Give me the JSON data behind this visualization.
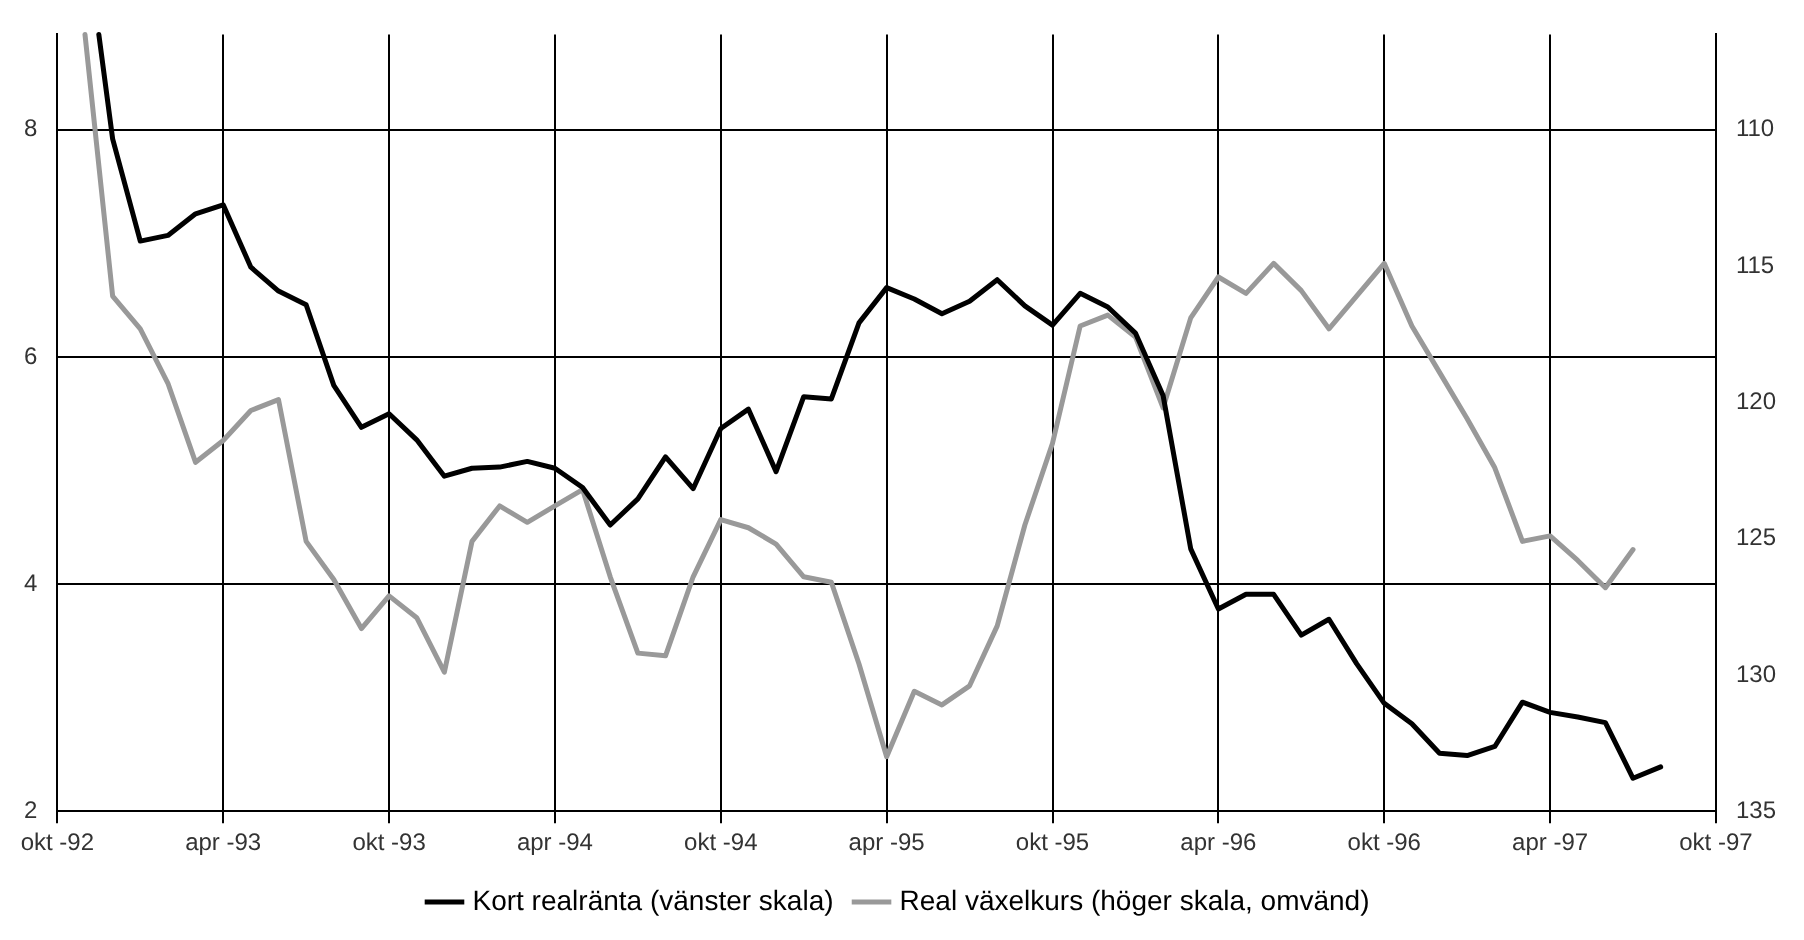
{
  "chart_data": {
    "type": "line",
    "xlim": [
      "1992-10",
      "1997-10"
    ],
    "xticks": [
      {
        "value": "1992-10",
        "label": "okt -92"
      },
      {
        "value": "1993-04",
        "label": "apr -93"
      },
      {
        "value": "1993-10",
        "label": "okt -93"
      },
      {
        "value": "1994-04",
        "label": "apr -94"
      },
      {
        "value": "1994-10",
        "label": "okt -94"
      },
      {
        "value": "1995-04",
        "label": "apr -95"
      },
      {
        "value": "1995-10",
        "label": "okt -95"
      },
      {
        "value": "1996-04",
        "label": "apr -96"
      },
      {
        "value": "1996-10",
        "label": "okt -96"
      },
      {
        "value": "1997-04",
        "label": "apr -97"
      },
      {
        "value": "1997-10",
        "label": "okt -97"
      }
    ],
    "ylim": [
      2,
      8.84
    ],
    "yticks": [
      2,
      4,
      6,
      8
    ],
    "y2lim": [
      135,
      106.5
    ],
    "y2ticks": [
      110,
      115,
      120,
      125,
      130,
      135
    ],
    "grid": true,
    "legend": "bottom",
    "marker": "none",
    "line_style": "solid",
    "series": [
      {
        "name": "Kort realränta (vänster skala)",
        "color": "#000000",
        "x": [
          "1992-11-16",
          "1992-12",
          "1993-01",
          "1993-02",
          "1993-03",
          "1993-04",
          "1993-05",
          "1993-06",
          "1993-07",
          "1993-08",
          "1993-09",
          "1993-10",
          "1993-11",
          "1993-12",
          "1994-01",
          "1994-02",
          "1994-03",
          "1994-04",
          "1994-05",
          "1994-06",
          "1994-07",
          "1994-08",
          "1994-09",
          "1994-10",
          "1994-11",
          "1994-12",
          "1995-01",
          "1995-02",
          "1995-03",
          "1995-04",
          "1995-05",
          "1995-06",
          "1995-07",
          "1995-08",
          "1995-09",
          "1995-10",
          "1995-11",
          "1995-12",
          "1996-01",
          "1996-02",
          "1996-03",
          "1996-04",
          "1996-05",
          "1996-06",
          "1996-07",
          "1996-08",
          "1996-09",
          "1996-10",
          "1996-11",
          "1996-12",
          "1997-01",
          "1997-02",
          "1997-03",
          "1997-04",
          "1997-05",
          "1997-06",
          "1997-07",
          "1997-08"
        ],
        "values": [
          8.84,
          7.92,
          7.02,
          7.07,
          7.26,
          7.34,
          6.79,
          6.58,
          6.46,
          5.75,
          5.38,
          5.5,
          5.27,
          4.95,
          5.02,
          5.03,
          5.08,
          5.02,
          4.85,
          4.52,
          4.75,
          5.12,
          4.84,
          5.37,
          5.54,
          4.99,
          5.65,
          5.63,
          6.3,
          6.61,
          6.51,
          6.38,
          6.49,
          6.68,
          6.45,
          6.28,
          6.56,
          6.44,
          6.21,
          5.66,
          4.31,
          3.78,
          3.91,
          3.91,
          3.55,
          3.69,
          3.3,
          2.95,
          2.77,
          2.51,
          2.49,
          2.57,
          2.96,
          2.87,
          2.83,
          2.78,
          2.29,
          2.39
        ]
      },
      {
        "name": "Real växelkurs (höger skala, omvänd)",
        "color": "#999999",
        "axis": "y2",
        "x": [
          "1992-11",
          "1992-12",
          "1993-01",
          "1993-02",
          "1993-03",
          "1993-04",
          "1993-05",
          "1993-06",
          "1993-07",
          "1993-08",
          "1993-09",
          "1993-10",
          "1993-11",
          "1993-12",
          "1994-01",
          "1994-02",
          "1994-03",
          "1994-04",
          "1994-05",
          "1994-06",
          "1994-07",
          "1994-08",
          "1994-09",
          "1994-10",
          "1994-11",
          "1994-12",
          "1995-01",
          "1995-02",
          "1995-03",
          "1995-04",
          "1995-05",
          "1995-06",
          "1995-07",
          "1995-08",
          "1995-09",
          "1995-10",
          "1995-11",
          "1995-12",
          "1996-01",
          "1996-02",
          "1996-03",
          "1996-04",
          "1996-05",
          "1996-06",
          "1996-07",
          "1996-08",
          "1996-09",
          "1996-10",
          "1996-11",
          "1996-12",
          "1997-01",
          "1997-02",
          "1997-03",
          "1997-04",
          "1997-05",
          "1997-06",
          "1997-07"
        ],
        "values": [
          106.5,
          116.1,
          117.3,
          119.3,
          122.2,
          121.4,
          120.3,
          119.9,
          125.1,
          126.5,
          128.3,
          127.1,
          127.9,
          129.9,
          125.1,
          123.8,
          124.4,
          123.8,
          123.2,
          126.4,
          129.2,
          129.3,
          126.4,
          124.3,
          124.6,
          125.2,
          126.4,
          126.6,
          129.6,
          133,
          130.6,
          131.1,
          130.4,
          128.2,
          124.5,
          121.5,
          117.2,
          116.8,
          117.6,
          120.2,
          116.9,
          115.4,
          116,
          114.9,
          115.9,
          117.3,
          116.1,
          114.9,
          117.2,
          118.9,
          120.6,
          122.4,
          125.1,
          124.9,
          125.8,
          126.8,
          125.4
        ]
      }
    ]
  }
}
